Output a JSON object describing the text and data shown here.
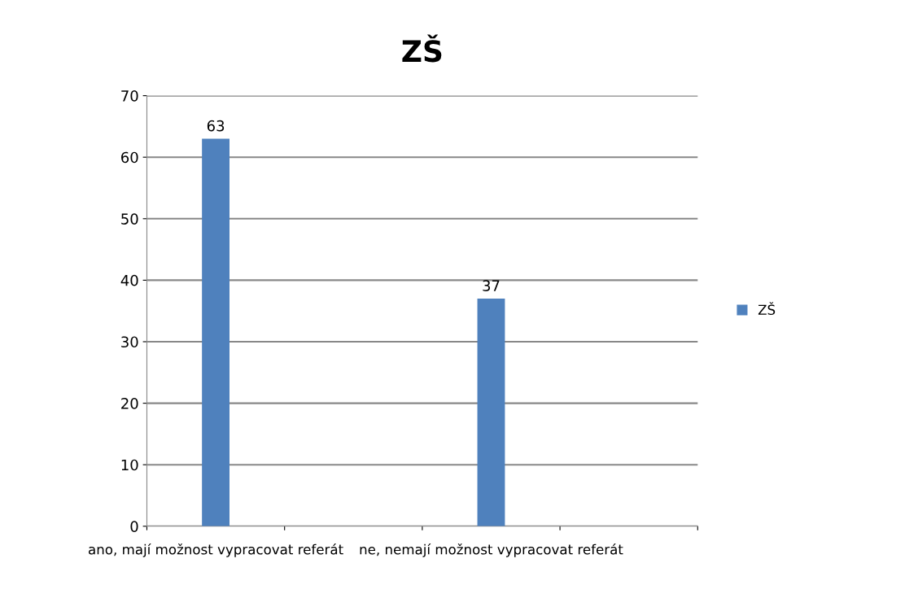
{
  "chart_data": {
    "type": "bar",
    "title": "ZŠ",
    "categories": [
      "ano, mají možnost vypracovat referát",
      null,
      "ne, nemají možnost vypracovat referát",
      null
    ],
    "series": [
      {
        "name": "ZŠ",
        "color": "#4f81bd",
        "values": [
          63,
          null,
          37,
          null
        ]
      }
    ],
    "ylim": [
      0,
      70
    ],
    "yticks": [
      0,
      10,
      20,
      30,
      40,
      50,
      60,
      70
    ],
    "grid": "y",
    "legend": "right",
    "data_labels": true
  }
}
